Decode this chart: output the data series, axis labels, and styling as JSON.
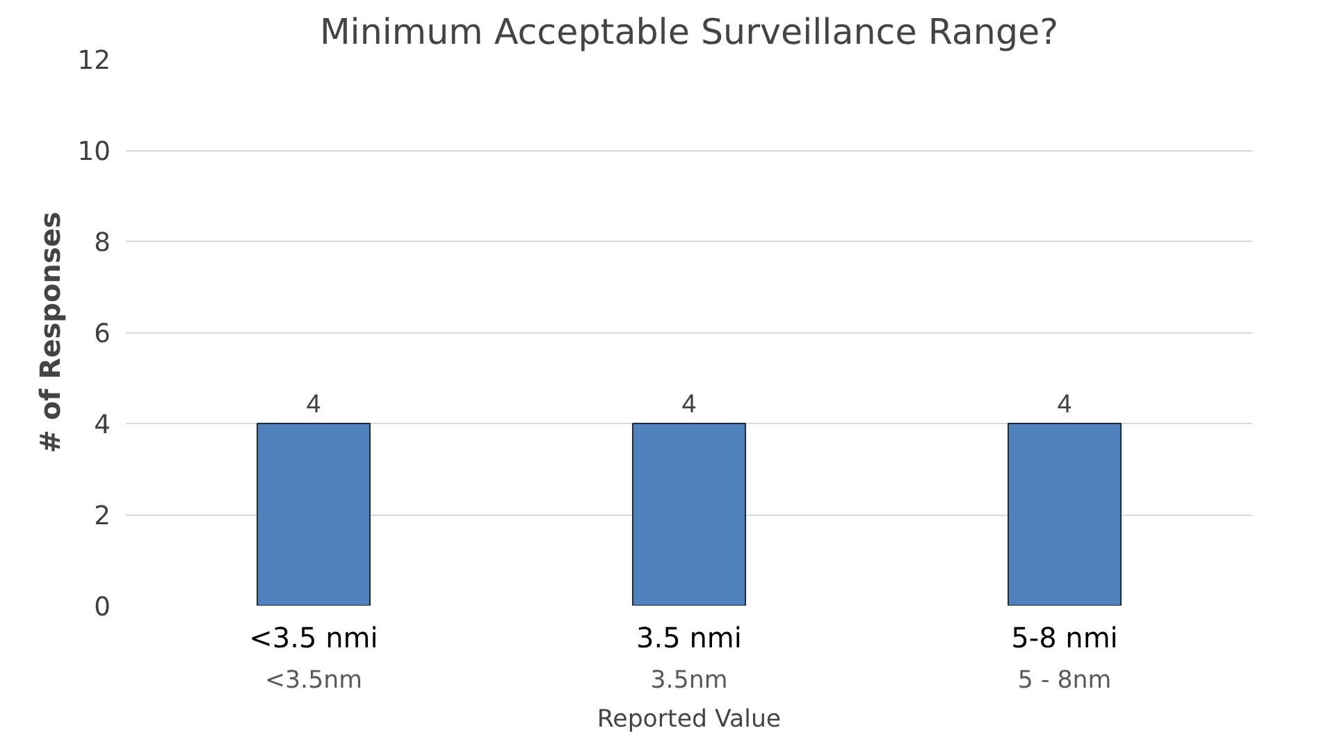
{
  "chart_data": {
    "type": "bar",
    "title": "Minimum Acceptable Surveillance Range?",
    "xlabel": "Reported Value",
    "ylabel": "# of Responses",
    "categories": [
      "<3.5 nmi",
      "3.5 nmi",
      "5-8 nmi"
    ],
    "values": [
      4,
      4,
      4
    ],
    "color": "#4f81bd",
    "ylim": [
      0,
      12
    ],
    "yticks": [
      0,
      2,
      4,
      6,
      8,
      10,
      12
    ],
    "grid": "y",
    "data_labels": true,
    "annotations": [
      "<3.5nm",
      "3.5nm",
      "5 - 8nm"
    ]
  }
}
